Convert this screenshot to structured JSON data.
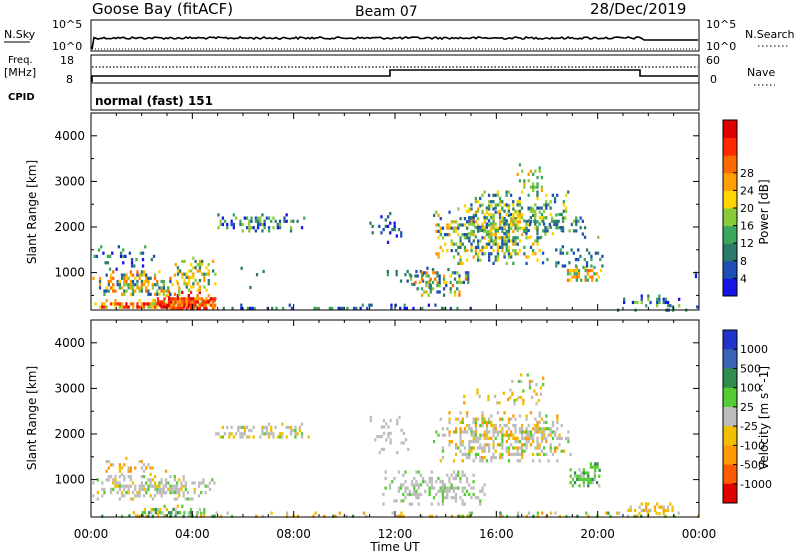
{
  "header": {
    "station": "Goose Bay (fitACF)",
    "beam": "Beam 07",
    "date": "28/Dec/2019"
  },
  "panels": {
    "nsky_label": "N.Sky",
    "nsky_top": "10^5",
    "nsky_bottom": "10^0",
    "nsearch_label": "N.Search",
    "nsearch_top": "10^5",
    "nsearch_bottom": "10^0",
    "freq_label": "Freq.",
    "freq_unit": "[MHz]",
    "freq_top": "18",
    "freq_bottom": "8",
    "nave_label": "Nave",
    "nave_top": "60",
    "nave_bottom": "0",
    "cpid_label": "CPID",
    "cpid_value": "normal (fast) 151"
  },
  "chart_data": [
    {
      "type": "heatmap",
      "title": "",
      "parameter": "Power",
      "ylabel": "Slant Range [km]",
      "xlabel": "Time UT",
      "ylim": [
        180,
        4500
      ],
      "y_ticks": [
        1000,
        2000,
        3000,
        4000
      ],
      "x_ticks": [
        "00:00",
        "04:00",
        "08:00",
        "12:00",
        "16:00",
        "20:00",
        "00:00"
      ],
      "colorbar": {
        "label": "Power [dB]",
        "ticks": [
          "4",
          "8",
          "12",
          "16",
          "20",
          "24",
          "28"
        ],
        "colors": [
          "#1414e6",
          "#1e4fb4",
          "#2e7a6a",
          "#3aa85a",
          "#8acb3a",
          "#ffd400",
          "#ffa000",
          "#ff6a00",
          "#ff2a00",
          "#e00000"
        ]
      }
    },
    {
      "type": "heatmap",
      "title": "",
      "parameter": "Velocity",
      "ylabel": "Slant Range [km]",
      "xlabel": "Time UT",
      "ylim": [
        180,
        4500
      ],
      "y_ticks": [
        1000,
        2000,
        3000,
        4000
      ],
      "x_ticks": [
        "00:00",
        "04:00",
        "08:00",
        "12:00",
        "16:00",
        "20:00",
        "00:00"
      ],
      "colorbar": {
        "label": "Velocity [m s^-1]",
        "ticks": [
          "1000",
          "500",
          "100",
          "25",
          "-25",
          "-100",
          "-500",
          "-1000"
        ],
        "colors": [
          "#2233cc",
          "#3b64b8",
          "#2f8c4a",
          "#55cc33",
          "#bdbdbd",
          "#f0c000",
          "#ff9a00",
          "#ff5a00",
          "#e00000"
        ]
      }
    }
  ]
}
